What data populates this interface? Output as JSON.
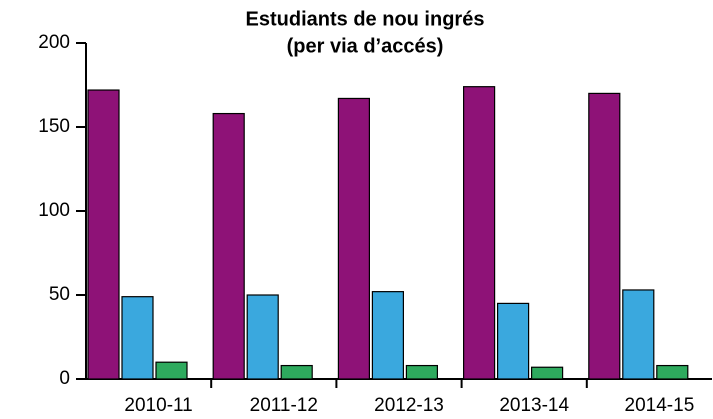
{
  "chart_data": {
    "type": "bar",
    "title": [
      "Estudiants de nou ingrés",
      "(per via d’accés)"
    ],
    "categories": [
      "2010-11",
      "2011-12",
      "2012-13",
      "2013-14",
      "2014-15"
    ],
    "series": [
      {
        "color": "#8e1277",
        "values": [
          172,
          158,
          167,
          174,
          170
        ]
      },
      {
        "color": "#3aa8de",
        "values": [
          49,
          50,
          52,
          45,
          53
        ]
      },
      {
        "color": "#2eaa5e",
        "values": [
          10,
          8,
          8,
          7,
          8
        ]
      }
    ],
    "ylim": [
      0,
      200
    ],
    "yticks": [
      0,
      50,
      100,
      150,
      200
    ]
  }
}
